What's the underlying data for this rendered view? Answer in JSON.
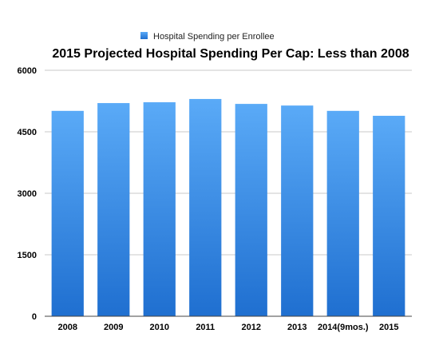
{
  "chart_data": {
    "type": "bar",
    "title": "2015 Projected Hospital Spending Per Cap: Less than 2008",
    "xlabel": "",
    "ylabel": "",
    "ylim": [
      0,
      6000
    ],
    "yticks": [
      0,
      1500,
      3000,
      4500,
      6000
    ],
    "grid": true,
    "legend_position": "top",
    "categories": [
      "2008",
      "2009",
      "2010",
      "2011",
      "2012",
      "2013",
      "2014(9mos.)",
      "2015"
    ],
    "series": [
      {
        "name": "Hospital Spending per Enrollee",
        "color": "#3d8fe6",
        "values": [
          5010,
          5200,
          5220,
          5300,
          5180,
          5140,
          5010,
          4890
        ]
      }
    ]
  }
}
